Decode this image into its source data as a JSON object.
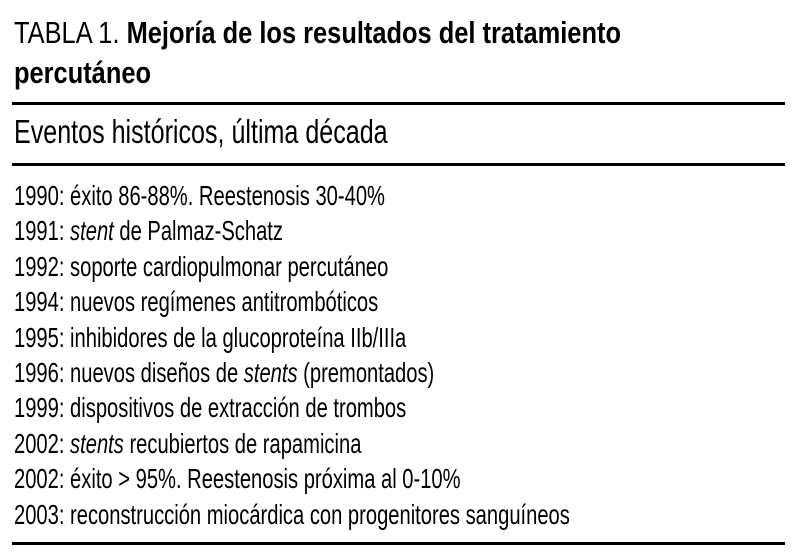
{
  "title": {
    "prefix": "TABLA 1. ",
    "bold_line1": "Mejoría de los resultados del tratamiento",
    "bold_line2": "percutáneo"
  },
  "subheader": "Eventos históricos, última década",
  "table": {
    "rows": [
      {
        "segments": [
          {
            "text": "1990: éxito 86-88%. Reestenosis 30-40%"
          }
        ]
      },
      {
        "segments": [
          {
            "text": "1991: "
          },
          {
            "text": "stent",
            "italic": true
          },
          {
            "text": " de Palmaz-Schatz"
          }
        ]
      },
      {
        "segments": [
          {
            "text": "1992: soporte cardiopulmonar percutáneo"
          }
        ]
      },
      {
        "segments": [
          {
            "text": "1994: nuevos regímenes antitrombóticos"
          }
        ]
      },
      {
        "segments": [
          {
            "text": "1995: inhibidores de la glucoproteína IIb/IIIa"
          }
        ]
      },
      {
        "segments": [
          {
            "text": "1996: nuevos diseños de "
          },
          {
            "text": "stents",
            "italic": true
          },
          {
            "text": " (premontados)"
          }
        ]
      },
      {
        "segments": [
          {
            "text": "1999: dispositivos de extracción de trombos"
          }
        ]
      },
      {
        "segments": [
          {
            "text": "2002: "
          },
          {
            "text": "stents",
            "italic": true
          },
          {
            "text": " recubiertos de rapamicina"
          }
        ]
      },
      {
        "segments": [
          {
            "text": "2002: éxito > 95%. Reestenosis próxima al 0-10%"
          }
        ]
      },
      {
        "segments": [
          {
            "text": "2003: reconstrucción miocárdica con progenitores sanguíneos"
          }
        ]
      }
    ]
  },
  "colors": {
    "background": "#ffffff",
    "text": "#000000",
    "rule": "#000000"
  }
}
